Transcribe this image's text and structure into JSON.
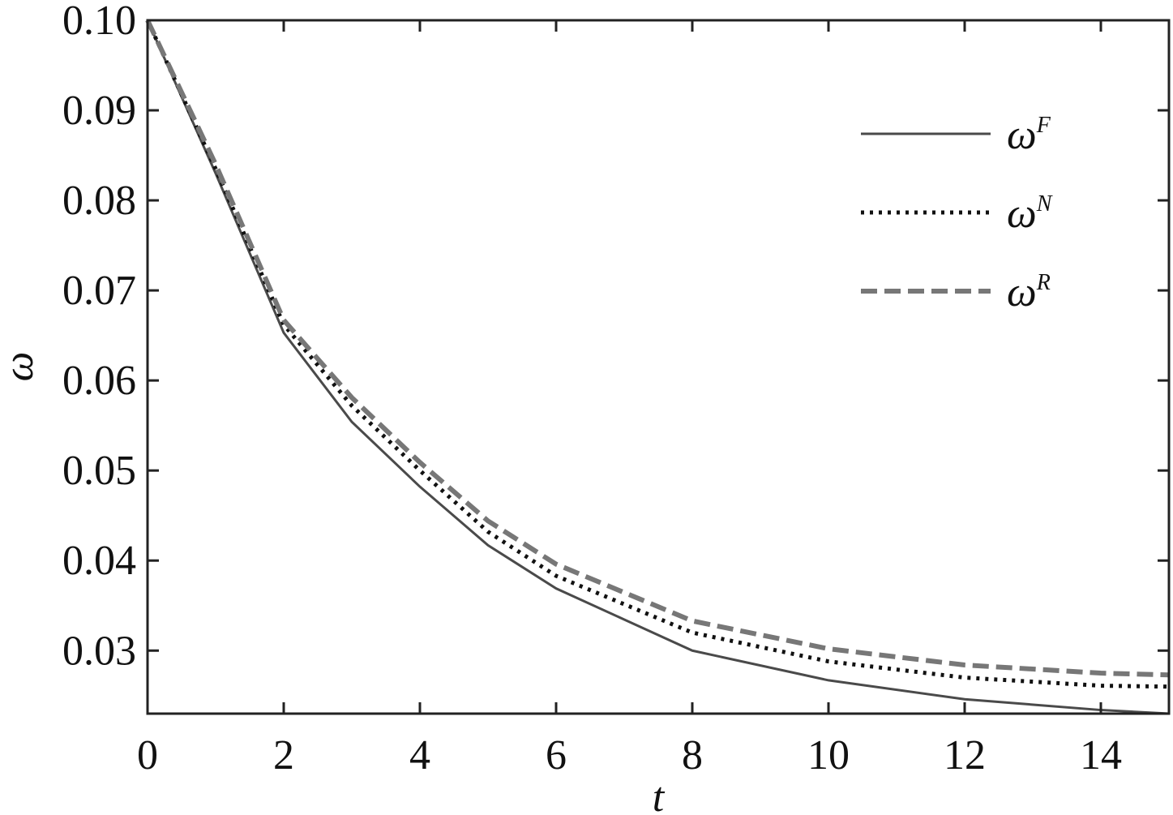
{
  "chart_data": {
    "type": "line",
    "x_label": "t",
    "y_label": "ω",
    "x": [
      0,
      1,
      2,
      3,
      4,
      5,
      6,
      8,
      10,
      12,
      14,
      15
    ],
    "series": [
      {
        "name": "ωF",
        "color": "#4a4a4a",
        "style": "solid",
        "values": [
          0.1,
          0.083,
          0.0653,
          0.0554,
          0.0482,
          0.0417,
          0.0369,
          0.03,
          0.0267,
          0.0246,
          0.0234,
          0.023
        ]
      },
      {
        "name": "ωN",
        "color": "#111111",
        "style": "dotted",
        "values": [
          0.1,
          0.0835,
          0.0662,
          0.0572,
          0.05,
          0.0432,
          0.0383,
          0.032,
          0.0288,
          0.027,
          0.0261,
          0.026
        ]
      },
      {
        "name": "ωR",
        "color": "#777777",
        "style": "dashed",
        "values": [
          0.1,
          0.084,
          0.0667,
          0.0581,
          0.0509,
          0.0444,
          0.0396,
          0.0333,
          0.0302,
          0.0284,
          0.0275,
          0.0273
        ]
      }
    ],
    "xlim": [
      0,
      15
    ],
    "xticks": [
      0,
      2,
      4,
      6,
      8,
      10,
      12,
      14
    ],
    "ylim": [
      0.023,
      0.1
    ],
    "yticks": [
      0.03,
      0.04,
      0.05,
      0.06,
      0.07,
      0.08,
      0.09,
      {
        "value": 0.1,
        "label": "0.10"
      }
    ],
    "legend": "upper right",
    "grid": false
  }
}
